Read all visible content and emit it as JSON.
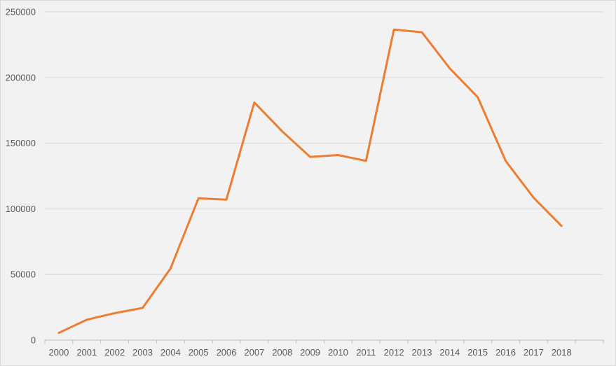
{
  "chart_data": {
    "type": "line",
    "title": "",
    "xlabel": "",
    "ylabel": "",
    "categories": [
      "2000",
      "2001",
      "2002",
      "2003",
      "2004",
      "2005",
      "2006",
      "2007",
      "2008",
      "2009",
      "2010",
      "2011",
      "2012",
      "2013",
      "2014",
      "2015",
      "2016",
      "2017",
      "2018"
    ],
    "series": [
      {
        "color": "#ed7d31",
        "values": [
          5500,
          15500,
          20500,
          24500,
          54500,
          108000,
          107000,
          181000,
          159000,
          139500,
          141000,
          136500,
          236500,
          234500,
          207000,
          185000,
          136500,
          108500,
          87000
        ]
      }
    ],
    "ylim": [
      0,
      250000
    ],
    "yticks": [
      "0",
      "50000",
      "100000",
      "150000",
      "200000",
      "250000"
    ],
    "grid": true,
    "legend": "none",
    "colors": {
      "background": "#f2f2f2",
      "gridline": "#d9d9d9",
      "axis": "#bfbfbf",
      "tick_text": "#595959"
    }
  }
}
